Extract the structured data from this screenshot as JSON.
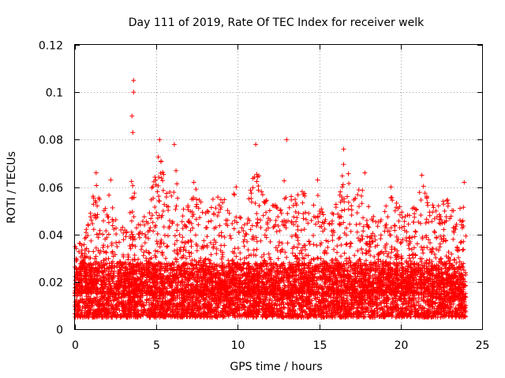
{
  "chart_data": {
    "type": "scatter",
    "title": "Day 111 of 2019, Rate Of TEC Index for receiver welk",
    "xlabel": "GPS time / hours",
    "ylabel": "ROTI / TECUs",
    "xlim": [
      0,
      25
    ],
    "ylim": [
      0,
      0.12
    ],
    "xticks": [
      0,
      5,
      10,
      15,
      20,
      25
    ],
    "xtick_labels": [
      "0",
      "5",
      "10",
      "15",
      "20",
      "25"
    ],
    "yticks": [
      0,
      0.02,
      0.04,
      0.06,
      0.08,
      0.1,
      0.12
    ],
    "ytick_labels": [
      "0",
      "0.02",
      "0.04",
      "0.06",
      "0.08",
      "0.1",
      "0.12"
    ],
    "grid": true,
    "marker": "plus",
    "series": [
      {
        "name": "ROTI",
        "color": "#ff0000",
        "x_range": [
          0,
          24
        ],
        "baseline_band": [
          0.005,
          0.025
        ],
        "notable_points": [
          {
            "x": 3.6,
            "y": 0.105
          },
          {
            "x": 3.6,
            "y": 0.1
          },
          {
            "x": 3.5,
            "y": 0.09
          },
          {
            "x": 3.55,
            "y": 0.083
          },
          {
            "x": 13.0,
            "y": 0.08
          },
          {
            "x": 5.2,
            "y": 0.08
          },
          {
            "x": 6.1,
            "y": 0.078
          },
          {
            "x": 11.1,
            "y": 0.078
          },
          {
            "x": 16.5,
            "y": 0.076
          },
          {
            "x": 1.3,
            "y": 0.066
          },
          {
            "x": 2.2,
            "y": 0.063
          },
          {
            "x": 7.3,
            "y": 0.062
          },
          {
            "x": 14.9,
            "y": 0.063
          },
          {
            "x": 21.3,
            "y": 0.065
          },
          {
            "x": 23.9,
            "y": 0.062
          },
          {
            "x": 17.8,
            "y": 0.066
          },
          {
            "x": 19.4,
            "y": 0.06
          },
          {
            "x": 9.9,
            "y": 0.06
          }
        ],
        "envelope": [
          [
            0.0,
            0.035
          ],
          [
            0.5,
            0.038
          ],
          [
            1.0,
            0.052
          ],
          [
            1.3,
            0.063
          ],
          [
            1.7,
            0.05
          ],
          [
            2.2,
            0.06
          ],
          [
            2.7,
            0.04
          ],
          [
            3.2,
            0.048
          ],
          [
            3.6,
            0.07
          ],
          [
            4.0,
            0.045
          ],
          [
            4.5,
            0.05
          ],
          [
            5.0,
            0.073
          ],
          [
            5.3,
            0.075
          ],
          [
            5.7,
            0.057
          ],
          [
            6.1,
            0.073
          ],
          [
            6.5,
            0.05
          ],
          [
            7.0,
            0.055
          ],
          [
            7.4,
            0.06
          ],
          [
            8.0,
            0.05
          ],
          [
            8.6,
            0.057
          ],
          [
            9.2,
            0.055
          ],
          [
            9.8,
            0.058
          ],
          [
            10.4,
            0.05
          ],
          [
            10.8,
            0.06
          ],
          [
            11.1,
            0.073
          ],
          [
            11.6,
            0.055
          ],
          [
            12.1,
            0.058
          ],
          [
            12.6,
            0.05
          ],
          [
            13.0,
            0.072
          ],
          [
            13.5,
            0.055
          ],
          [
            14.0,
            0.06
          ],
          [
            14.5,
            0.05
          ],
          [
            15.0,
            0.06
          ],
          [
            15.5,
            0.045
          ],
          [
            16.1,
            0.06
          ],
          [
            16.6,
            0.073
          ],
          [
            17.1,
            0.055
          ],
          [
            17.7,
            0.064
          ],
          [
            18.2,
            0.05
          ],
          [
            18.7,
            0.048
          ],
          [
            19.3,
            0.058
          ],
          [
            19.9,
            0.052
          ],
          [
            20.4,
            0.048
          ],
          [
            20.9,
            0.055
          ],
          [
            21.3,
            0.062
          ],
          [
            21.8,
            0.055
          ],
          [
            22.3,
            0.052
          ],
          [
            22.8,
            0.058
          ],
          [
            23.3,
            0.05
          ],
          [
            23.9,
            0.06
          ],
          [
            24.0,
            0.045
          ]
        ]
      }
    ]
  }
}
